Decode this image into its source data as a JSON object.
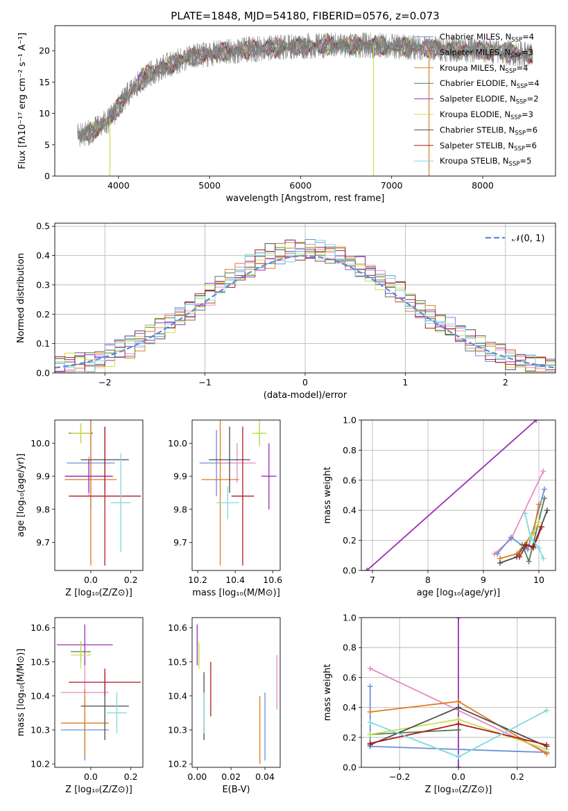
{
  "page": {
    "title": "PLATE=1848, MJD=54180, FIBERID=0576, z=0.073"
  },
  "colors": {
    "Chabrier MILES": "#6a8fd9",
    "Salpeter MILES": "#e58ac4",
    "Kroupa MILES": "#e07a1f",
    "Chabrier ELODIE": "#4f7f4f",
    "Salpeter ELODIE": "#9b2bb5",
    "Kroupa ELODIE": "#c7e04a",
    "Chabrier STELIB": "#4b4b4b",
    "Salpeter STELIB": "#b0181d",
    "Kroupa STELIB": "#7fdada",
    "data": "#808080",
    "gaussian": "#5b8ad8"
  },
  "chart_data": [
    {
      "id": "spectrum",
      "type": "line",
      "xlabel": "wavelength [Angstrom, rest frame]",
      "ylabel": "Flux [fλ10⁻¹⁷ erg cm⁻² s⁻¹ A⁻¹]",
      "xlim": [
        3300,
        8800
      ],
      "ylim": [
        0,
        24
      ],
      "xticks": [
        4000,
        5000,
        6000,
        7000,
        8000
      ],
      "yticks": [
        0,
        5,
        10,
        15,
        20
      ],
      "continuum": {
        "x": [
          3550,
          3700,
          3900,
          4000,
          4100,
          4300,
          4500,
          4800,
          5000,
          5200,
          5500,
          5800,
          6200,
          6600,
          7000,
          7400,
          7800,
          8200,
          8550
        ],
        "y": [
          6.5,
          7,
          9,
          11,
          13,
          16,
          17.5,
          19,
          19.5,
          19.8,
          20.3,
          20.6,
          20.8,
          20.9,
          20.7,
          20.4,
          20.2,
          19.8,
          19.3
        ]
      },
      "legend": [
        {
          "name": "Chabrier MILES",
          "n": "4"
        },
        {
          "name": "Salpeter MILES",
          "n": "3"
        },
        {
          "name": "Kroupa MILES",
          "n": "4"
        },
        {
          "name": "Chabrier ELODIE",
          "n": "4"
        },
        {
          "name": "Salpeter ELODIE",
          "n": "2"
        },
        {
          "name": "Kroupa ELODIE",
          "n": "3"
        },
        {
          "name": "Chabrier STELIB",
          "n": "6"
        },
        {
          "name": "Salpeter STELIB",
          "n": "6"
        },
        {
          "name": "Kroupa STELIB",
          "n": "5"
        }
      ],
      "legend_suffix": "SSP",
      "legend_eq": "N"
    },
    {
      "id": "residuals",
      "type": "line",
      "xlabel": "(data-model)/error",
      "ylabel": "Normed distribution",
      "xlim": [
        -2.5,
        2.5
      ],
      "ylim": [
        0,
        0.51
      ],
      "xticks": [
        -2,
        -1,
        0,
        1,
        2
      ],
      "xtick_labels": [
        "−2",
        "−1",
        "0",
        "1",
        "2"
      ],
      "yticks": [
        0,
        0.1,
        0.2,
        0.3,
        0.4,
        0.5
      ],
      "ytick_labels": [
        "0.0",
        "0.1",
        "0.2",
        "0.3",
        "0.4",
        "0.5"
      ],
      "grid": true,
      "legend_label": "𝒩(0, 1)",
      "bin_width": 0.1,
      "series": [
        {
          "model": "Chabrier MILES",
          "phase": 0.3
        },
        {
          "model": "Salpeter MILES",
          "phase": 1.1
        },
        {
          "model": "Kroupa MILES",
          "phase": 1.9
        },
        {
          "model": "Chabrier ELODIE",
          "phase": 2.6
        },
        {
          "model": "Salpeter ELODIE",
          "phase": 3.4
        },
        {
          "model": "Kroupa ELODIE",
          "phase": 4.2
        },
        {
          "model": "Chabrier STELIB",
          "phase": 4.9
        },
        {
          "model": "Salpeter STELIB",
          "phase": 5.6
        },
        {
          "model": "Kroupa STELIB",
          "phase": 6.3
        }
      ]
    },
    {
      "id": "age-vs-Z",
      "type": "scatter",
      "xlabel": "Z [log₁₀(Z/Z⊙)]",
      "ylabel": "age  [log₁₀(age/yr)]",
      "xlim": [
        -0.18,
        0.26
      ],
      "ylim": [
        9.615,
        10.07
      ],
      "xticks": [
        0,
        0.2
      ],
      "xtick_labels": [
        "0.0",
        "0.2"
      ],
      "yticks": [
        9.7,
        9.8,
        9.9,
        10.0
      ],
      "ytick_labels": [
        "9.7",
        "9.8",
        "9.9",
        "10.0"
      ],
      "points": [
        {
          "model": "Chabrier MILES",
          "x": 0.0,
          "xe": 0.12,
          "y": 9.94,
          "ye": 0.14
        },
        {
          "model": "Salpeter MILES",
          "x": -0.01,
          "xe": 0.12,
          "y": 9.9,
          "ye": 0.06
        },
        {
          "model": "Kroupa MILES",
          "x": 0.0,
          "xe": 0.13,
          "y": 9.89,
          "ye": 0.26
        },
        {
          "model": "Chabrier ELODIE",
          "x": -0.05,
          "xe": 0.06,
          "y": 10.03,
          "ye": 0.03
        },
        {
          "model": "Salpeter ELODIE",
          "x": -0.01,
          "xe": 0.12,
          "y": 9.9,
          "ye": 0.05
        },
        {
          "model": "Kroupa ELODIE",
          "x": -0.05,
          "xe": 0.05,
          "y": 10.03,
          "ye": 0.03
        },
        {
          "model": "Chabrier STELIB",
          "x": 0.07,
          "xe": 0.12,
          "y": 9.95,
          "ye": 0.1
        },
        {
          "model": "Salpeter STELIB",
          "x": 0.07,
          "xe": 0.18,
          "y": 9.84,
          "ye": 0.21
        },
        {
          "model": "Kroupa STELIB",
          "x": 0.15,
          "xe": 0.05,
          "y": 9.82,
          "ye": 0.15
        }
      ]
    },
    {
      "id": "age-vs-mass",
      "type": "scatter",
      "xlabel": "mass [log₁₀(M/M⊙)]",
      "ylabel": "",
      "xlim": [
        10.17,
        10.64
      ],
      "ylim": [
        9.615,
        10.07
      ],
      "xticks": [
        10.2,
        10.4,
        10.6
      ],
      "xtick_labels": [
        "10.2",
        "10.4",
        "10.6"
      ],
      "yticks": [
        9.7,
        9.8,
        9.9,
        10.0
      ],
      "ytick_labels": [
        "9.7",
        "9.8",
        "9.9",
        "10.0"
      ],
      "points": [
        {
          "model": "Chabrier MILES",
          "x": 10.3,
          "xe": 0.09,
          "y": 9.94,
          "ye": 0.1
        },
        {
          "model": "Salpeter MILES",
          "x": 10.41,
          "xe": 0.1,
          "y": 9.94,
          "ye": 0.06
        },
        {
          "model": "Kroupa MILES",
          "x": 10.32,
          "xe": 0.1,
          "y": 9.89,
          "ye": 0.26
        },
        {
          "model": "Chabrier ELODIE",
          "x": 10.53,
          "xe": 0.02,
          "y": 10.03,
          "ye": 0.03
        },
        {
          "model": "Salpeter ELODIE",
          "x": 10.58,
          "xe": 0.04,
          "y": 9.9,
          "ye": 0.1
        },
        {
          "model": "Kroupa ELODIE",
          "x": 10.53,
          "xe": 0.04,
          "y": 10.03,
          "ye": 0.04
        },
        {
          "model": "Chabrier STELIB",
          "x": 10.37,
          "xe": 0.11,
          "y": 9.95,
          "ye": 0.1
        },
        {
          "model": "Salpeter STELIB",
          "x": 10.44,
          "xe": 0.06,
          "y": 9.84,
          "ye": 0.21
        },
        {
          "model": "Kroupa STELIB",
          "x": 10.36,
          "xe": 0.06,
          "y": 9.82,
          "ye": 0.05
        }
      ]
    },
    {
      "id": "weight-vs-age",
      "type": "line",
      "xlabel": "age  [log₁₀(age/yr)]",
      "ylabel": "mass weight",
      "xlim": [
        6.8,
        10.3
      ],
      "ylim": [
        0,
        1.0
      ],
      "xticks": [
        7,
        8,
        9,
        10
      ],
      "xtick_labels": [
        "7",
        "8",
        "9",
        "10"
      ],
      "yticks": [
        0,
        0.2,
        0.4,
        0.6,
        0.8,
        1.0
      ],
      "ytick_labels": [
        "0.0",
        "0.2",
        "0.4",
        "0.6",
        "0.8",
        "1.0"
      ],
      "grid": true,
      "series": [
        {
          "model": "Salpeter ELODIE",
          "x": [
            6.9,
            9.95
          ],
          "y": [
            0.0,
            1.0
          ]
        },
        {
          "model": "Salpeter MILES",
          "x": [
            9.2,
            9.5,
            10.08
          ],
          "y": [
            0.11,
            0.21,
            0.66
          ]
        },
        {
          "model": "Chabrier MILES",
          "x": [
            9.25,
            9.5,
            9.8,
            10.1
          ],
          "y": [
            0.11,
            0.22,
            0.14,
            0.54
          ]
        },
        {
          "model": "Kroupa MILES",
          "x": [
            9.3,
            9.6,
            9.9,
            10.0
          ],
          "y": [
            0.08,
            0.11,
            0.25,
            0.44
          ]
        },
        {
          "model": "Chabrier ELODIE",
          "x": [
            9.7,
            9.82,
            10.1
          ],
          "y": [
            0.17,
            0.06,
            0.48
          ]
        },
        {
          "model": "Kroupa ELODIE",
          "x": [
            9.75,
            9.85,
            10.0
          ],
          "y": [
            0.16,
            0.22,
            0.32
          ]
        },
        {
          "model": "Chabrier STELIB",
          "x": [
            9.3,
            9.6,
            9.75,
            9.9,
            10.15
          ],
          "y": [
            0.05,
            0.09,
            0.17,
            0.16,
            0.4
          ]
        },
        {
          "model": "Salpeter STELIB",
          "x": [
            9.65,
            9.78,
            9.9,
            10.05
          ],
          "y": [
            0.09,
            0.17,
            0.15,
            0.29
          ]
        },
        {
          "model": "Kroupa STELIB",
          "x": [
            9.75,
            9.85,
            10.0,
            10.08
          ],
          "y": [
            0.38,
            0.22,
            0.15,
            0.08
          ]
        }
      ]
    },
    {
      "id": "mass-vs-Z",
      "type": "scatter",
      "xlabel": "Z [log₁₀(Z/Z⊙)]",
      "ylabel": "mass [log₁₀(M/M⊙)]",
      "xlim": [
        -0.18,
        0.26
      ],
      "ylim": [
        10.19,
        10.63
      ],
      "xticks": [
        0,
        0.2
      ],
      "xtick_labels": [
        "0.0",
        "0.2"
      ],
      "yticks": [
        10.2,
        10.3,
        10.4,
        10.5,
        10.6
      ],
      "ytick_labels": [
        "10.2",
        "10.3",
        "10.4",
        "10.5",
        "10.6"
      ],
      "points": [
        {
          "model": "Chabrier MILES",
          "x": -0.03,
          "xe": 0.12,
          "y": 10.3,
          "ye": 0.09
        },
        {
          "model": "Salpeter MILES",
          "x": -0.03,
          "xe": 0.12,
          "y": 10.41,
          "ye": 0.09
        },
        {
          "model": "Kroupa MILES",
          "x": -0.03,
          "xe": 0.12,
          "y": 10.32,
          "ye": 0.1
        },
        {
          "model": "Chabrier ELODIE",
          "x": -0.05,
          "xe": 0.05,
          "y": 10.53,
          "ye": 0.03
        },
        {
          "model": "Salpeter ELODIE",
          "x": -0.03,
          "xe": 0.14,
          "y": 10.55,
          "ye": 0.06
        },
        {
          "model": "Kroupa ELODIE",
          "x": -0.05,
          "xe": 0.05,
          "y": 10.52,
          "ye": 0.04
        },
        {
          "model": "Chabrier STELIB",
          "x": 0.07,
          "xe": 0.12,
          "y": 10.37,
          "ye": 0.1
        },
        {
          "model": "Salpeter STELIB",
          "x": 0.07,
          "xe": 0.18,
          "y": 10.44,
          "ye": 0.04
        },
        {
          "model": "Kroupa STELIB",
          "x": 0.13,
          "xe": 0.05,
          "y": 10.35,
          "ye": 0.06
        }
      ]
    },
    {
      "id": "mass-vs-ebv",
      "type": "scatter",
      "xlabel": "E(B-V)",
      "ylabel": "",
      "xlim": [
        -0.003,
        0.049
      ],
      "ylim": [
        10.19,
        10.63
      ],
      "xticks": [
        0,
        0.02,
        0.04
      ],
      "xtick_labels": [
        "0.00",
        "0.02",
        "0.04"
      ],
      "yticks": [
        10.2,
        10.3,
        10.4,
        10.5,
        10.6
      ],
      "ytick_labels": [
        "10.2",
        "10.3",
        "10.4",
        "10.5",
        "10.6"
      ],
      "points": [
        {
          "model": "Chabrier MILES",
          "x": 0.04,
          "xe": 0,
          "y": 10.31,
          "ye": 0.1
        },
        {
          "model": "Salpeter MILES",
          "x": 0.047,
          "xe": 0,
          "y": 10.44,
          "ye": 0.08
        },
        {
          "model": "Kroupa MILES",
          "x": 0.037,
          "xe": 0,
          "y": 10.3,
          "ye": 0.1
        },
        {
          "model": "Chabrier ELODIE",
          "x": 0.001,
          "xe": 0,
          "y": 10.52,
          "ye": 0.03
        },
        {
          "model": "Salpeter ELODIE",
          "x": 0.0,
          "xe": 0,
          "y": 10.55,
          "ye": 0.06
        },
        {
          "model": "Kroupa ELODIE",
          "x": 0.001,
          "xe": 0,
          "y": 10.52,
          "ye": 0.04
        },
        {
          "model": "Chabrier STELIB",
          "x": 0.004,
          "xe": 0,
          "y": 10.37,
          "ye": 0.1
        },
        {
          "model": "Salpeter STELIB",
          "x": 0.008,
          "xe": 0,
          "y": 10.42,
          "ye": 0.08
        },
        {
          "model": "Kroupa STELIB",
          "x": 0.004,
          "xe": 0,
          "y": 10.35,
          "ye": 0.06
        }
      ]
    },
    {
      "id": "weight-vs-Z",
      "type": "line",
      "xlabel": "Z [log₁₀(Z/Z⊙)]",
      "ylabel": "mass weight",
      "xlim": [
        -0.33,
        0.33
      ],
      "ylim": [
        0,
        1.0
      ],
      "xticks": [
        -0.2,
        0,
        0.2
      ],
      "xtick_labels": [
        "−0.2",
        "0.0",
        "0.2"
      ],
      "yticks": [
        0,
        0.2,
        0.4,
        0.6,
        0.8,
        1.0
      ],
      "ytick_labels": [
        "0.0",
        "0.2",
        "0.4",
        "0.6",
        "0.8",
        "1.0"
      ],
      "grid": true,
      "series": [
        {
          "model": "Salpeter ELODIE",
          "x": [
            0.0,
            0.0
          ],
          "y": [
            0.0,
            1.0
          ]
        },
        {
          "model": "Salpeter MILES",
          "x": [
            -0.3,
            0.3
          ],
          "y": [
            0.66,
            0.1
          ]
        },
        {
          "model": "Chabrier MILES",
          "x": [
            -0.3,
            -0.3,
            0.3
          ],
          "y": [
            0.54,
            0.14,
            0.1
          ]
        },
        {
          "model": "Kroupa MILES",
          "x": [
            -0.3,
            0.0,
            0.3
          ],
          "y": [
            0.37,
            0.44,
            0.09
          ]
        },
        {
          "model": "Chabrier ELODIE",
          "x": [
            -0.3,
            0.0
          ],
          "y": [
            0.22,
            0.25
          ]
        },
        {
          "model": "Kroupa ELODIE",
          "x": [
            -0.3,
            0.0,
            0.3
          ],
          "y": [
            0.22,
            0.32,
            0.12
          ]
        },
        {
          "model": "Chabrier STELIB",
          "x": [
            -0.3,
            0.0,
            0.3
          ],
          "y": [
            0.15,
            0.4,
            0.14
          ]
        },
        {
          "model": "Salpeter STELIB",
          "x": [
            -0.3,
            0.0,
            0.3
          ],
          "y": [
            0.16,
            0.29,
            0.15
          ]
        },
        {
          "model": "Kroupa STELIB",
          "x": [
            -0.3,
            0.0,
            0.3
          ],
          "y": [
            0.3,
            0.07,
            0.38
          ]
        }
      ]
    }
  ]
}
